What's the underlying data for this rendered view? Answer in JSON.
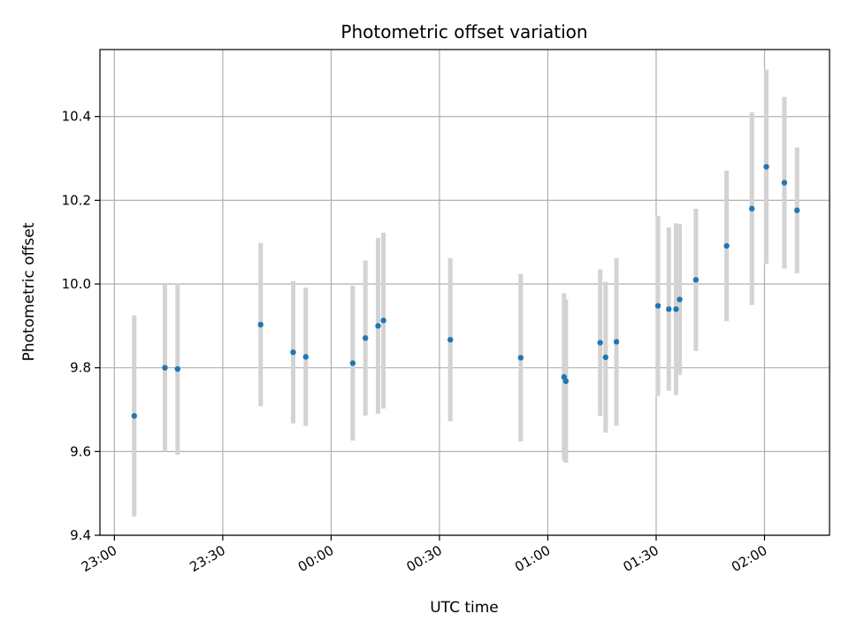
{
  "chart_data": {
    "type": "scatter",
    "title": "Photometric offset variation",
    "xlabel": "UTC time",
    "ylabel": "Photometric offset",
    "x_unit": "time (HH:MM, UTC)",
    "xlim": [
      "22:56",
      "02:18"
    ],
    "ylim": [
      9.4,
      10.56
    ],
    "x_ticks": [
      "23:00",
      "23:30",
      "00:00",
      "00:30",
      "01:00",
      "01:30",
      "02:00"
    ],
    "y_ticks": [
      9.4,
      9.6,
      9.8,
      10.0,
      10.2,
      10.4
    ],
    "y_tick_labels": [
      "9.4",
      "9.6",
      "9.8",
      "10.0",
      "10.2",
      "10.4"
    ],
    "grid": true,
    "x_tick_rotation": -30,
    "colors": {
      "points": "#1f77b4",
      "errorbars": "#d3d3d3",
      "grid": "#b0b0b0"
    },
    "points": [
      {
        "x": "23:05:30",
        "y": 9.685,
        "err": 0.24
      },
      {
        "x": "23:14:00",
        "y": 9.8,
        "err": 0.2
      },
      {
        "x": "23:17:30",
        "y": 9.797,
        "err": 0.205
      },
      {
        "x": "23:40:30",
        "y": 9.903,
        "err": 0.195
      },
      {
        "x": "23:49:30",
        "y": 9.837,
        "err": 0.17
      },
      {
        "x": "23:53:00",
        "y": 9.826,
        "err": 0.165
      },
      {
        "x": "00:06:00",
        "y": 9.811,
        "err": 0.185
      },
      {
        "x": "00:09:30",
        "y": 9.871,
        "err": 0.185
      },
      {
        "x": "00:13:00",
        "y": 9.9,
        "err": 0.21
      },
      {
        "x": "00:14:30",
        "y": 9.913,
        "err": 0.21
      },
      {
        "x": "00:33:00",
        "y": 9.867,
        "err": 0.195
      },
      {
        "x": "00:52:30",
        "y": 9.824,
        "err": 0.2
      },
      {
        "x": "01:04:30",
        "y": 9.778,
        "err": 0.2
      },
      {
        "x": "01:05:00",
        "y": 9.768,
        "err": 0.195
      },
      {
        "x": "01:14:30",
        "y": 9.86,
        "err": 0.175
      },
      {
        "x": "01:16:00",
        "y": 9.825,
        "err": 0.18
      },
      {
        "x": "01:19:00",
        "y": 9.862,
        "err": 0.2
      },
      {
        "x": "01:30:30",
        "y": 9.948,
        "err": 0.215
      },
      {
        "x": "01:33:30",
        "y": 9.94,
        "err": 0.195
      },
      {
        "x": "01:35:30",
        "y": 9.94,
        "err": 0.205
      },
      {
        "x": "01:36:30",
        "y": 9.963,
        "err": 0.18
      },
      {
        "x": "01:41:00",
        "y": 10.01,
        "err": 0.17
      },
      {
        "x": "01:49:30",
        "y": 10.091,
        "err": 0.18
      },
      {
        "x": "01:56:30",
        "y": 10.18,
        "err": 0.23
      },
      {
        "x": "02:00:30",
        "y": 10.28,
        "err": 0.232
      },
      {
        "x": "02:05:30",
        "y": 10.242,
        "err": 0.205
      },
      {
        "x": "02:09:00",
        "y": 10.176,
        "err": 0.15
      }
    ]
  }
}
